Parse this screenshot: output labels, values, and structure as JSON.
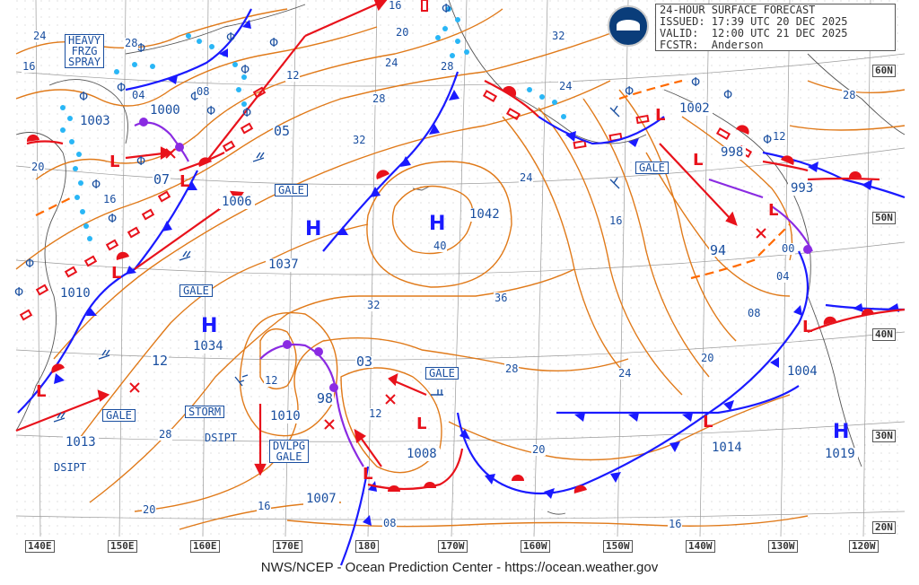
{
  "header": {
    "title": "24-HOUR SURFACE FORECAST",
    "issued": "ISSUED: 17:39 UTC 20 DEC 2025",
    "valid": "VALID:  12:00 UTC 21 DEC 2025",
    "forecaster": "FCSTR:  Anderson"
  },
  "footer": "NWS/NCEP - Ocean Prediction Center - https://ocean.weather.gov",
  "longitude_labels": [
    "140E",
    "150E",
    "160E",
    "170E",
    "180",
    "170W",
    "160W",
    "150W",
    "140W",
    "130W",
    "120W"
  ],
  "latitude_labels": [
    "60N",
    "50N",
    "40N",
    "30N",
    "20N"
  ],
  "colors": {
    "isobar": "#e07a1a",
    "cold_front": "#1a1aff",
    "warm_front": "#e8121b",
    "occluded_front": "#8a2be2",
    "ice_spray": "#29b6f6",
    "label_text": "#1a4fa0",
    "trough": "#ff6a00"
  },
  "pressure_centers": [
    {
      "type": "H",
      "value": "1037"
    },
    {
      "type": "H",
      "value": "1042"
    },
    {
      "type": "H",
      "value": "1034"
    },
    {
      "type": "H",
      "value": "1019"
    },
    {
      "type": "L",
      "value": "1003"
    },
    {
      "type": "L",
      "value": "1000"
    },
    {
      "type": "L",
      "value": "1006"
    },
    {
      "type": "L",
      "value": "1010"
    },
    {
      "type": "L",
      "value": "1013"
    },
    {
      "type": "L",
      "value": "1010"
    },
    {
      "type": "L",
      "value": "1007"
    },
    {
      "type": "L",
      "value": "1008"
    },
    {
      "type": "L",
      "value": "1002"
    },
    {
      "type": "L",
      "value": "998"
    },
    {
      "type": "L",
      "value": "993"
    },
    {
      "type": "L",
      "value": "1004"
    },
    {
      "type": "L",
      "value": "1014"
    }
  ],
  "warning_boxes": [
    "HEAVY\nFRZG\nSPRAY",
    "GALE",
    "GALE",
    "STORM",
    "GALE",
    "DVLPG\nGALE",
    "GALE",
    "GALE"
  ],
  "isobar_labels": [
    "24",
    "28",
    "16",
    "04",
    "08",
    "12",
    "16",
    "20",
    "24",
    "28",
    "32",
    "32",
    "28",
    "24",
    "20",
    "16",
    "12",
    "05",
    "07",
    "12",
    "40",
    "36",
    "32",
    "28",
    "24",
    "20",
    "16",
    "12",
    "08",
    "04",
    "00",
    "94",
    "03",
    "98",
    "28",
    "20",
    "16",
    "12",
    "08",
    "16",
    "20",
    "24",
    "28"
  ],
  "dissipating_labels": [
    "DSIPT",
    "DSIPT"
  ]
}
